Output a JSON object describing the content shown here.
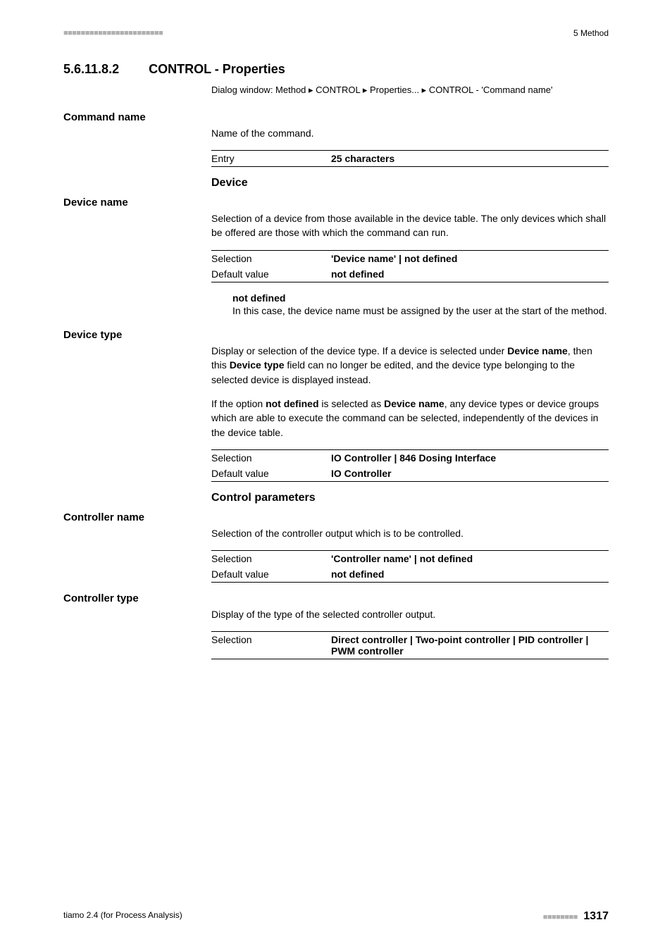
{
  "header": {
    "left_dashes": "■■■■■■■■■■■■■■■■■■■■■■■",
    "right": "5 Method"
  },
  "section": {
    "number": "5.6.11.8.2",
    "title": "CONTROL - Properties"
  },
  "dialog_path": "Dialog window: Method ▸ CONTROL ▸ Properties... ▸ CONTROL - 'Command name'",
  "command_name": {
    "heading": "Command name",
    "desc": "Name of the command.",
    "entry_label": "Entry",
    "entry_value": "25 characters"
  },
  "device_section_title": "Device",
  "device_name": {
    "heading": "Device name",
    "desc": "Selection of a device from those available in the device table. The only devices which shall be offered are those with which the command can run.",
    "selection_label": "Selection",
    "selection_value": "'Device name' | not defined",
    "default_label": "Default value",
    "default_value": "not defined",
    "subterm": "not defined",
    "subdef": "In this case, the device name must be assigned by the user at the start of the method."
  },
  "device_type": {
    "heading": "Device type",
    "p1_a": "Display or selection of the device type. If a device is selected under ",
    "p1_b": "Device name",
    "p1_c": ", then this ",
    "p1_d": "Device type",
    "p1_e": " field can no longer be edited, and the device type belonging to the selected device is displayed instead.",
    "p2_a": "If the option ",
    "p2_b": "not defined",
    "p2_c": " is selected as ",
    "p2_d": "Device name",
    "p2_e": ", any device types or device groups which are able to execute the command can be selected, independently of the devices in the device table.",
    "selection_label": "Selection",
    "selection_value": "IO Controller | 846 Dosing Interface",
    "default_label": "Default value",
    "default_value": "IO Controller"
  },
  "control_params_title": "Control parameters",
  "controller_name": {
    "heading": "Controller name",
    "desc": "Selection of the controller output which is to be controlled.",
    "selection_label": "Selection",
    "selection_value": "'Controller name' | not defined",
    "default_label": "Default value",
    "default_value": "not defined"
  },
  "controller_type": {
    "heading": "Controller type",
    "desc": "Display of the type of the selected controller output.",
    "selection_label": "Selection",
    "selection_value": "Direct controller | Two-point controller | PID controller | PWM controller"
  },
  "footer": {
    "left": "tiamo 2.4 (for Process Analysis)",
    "right_dashes": "■■■■■■■■",
    "page": "1317"
  }
}
